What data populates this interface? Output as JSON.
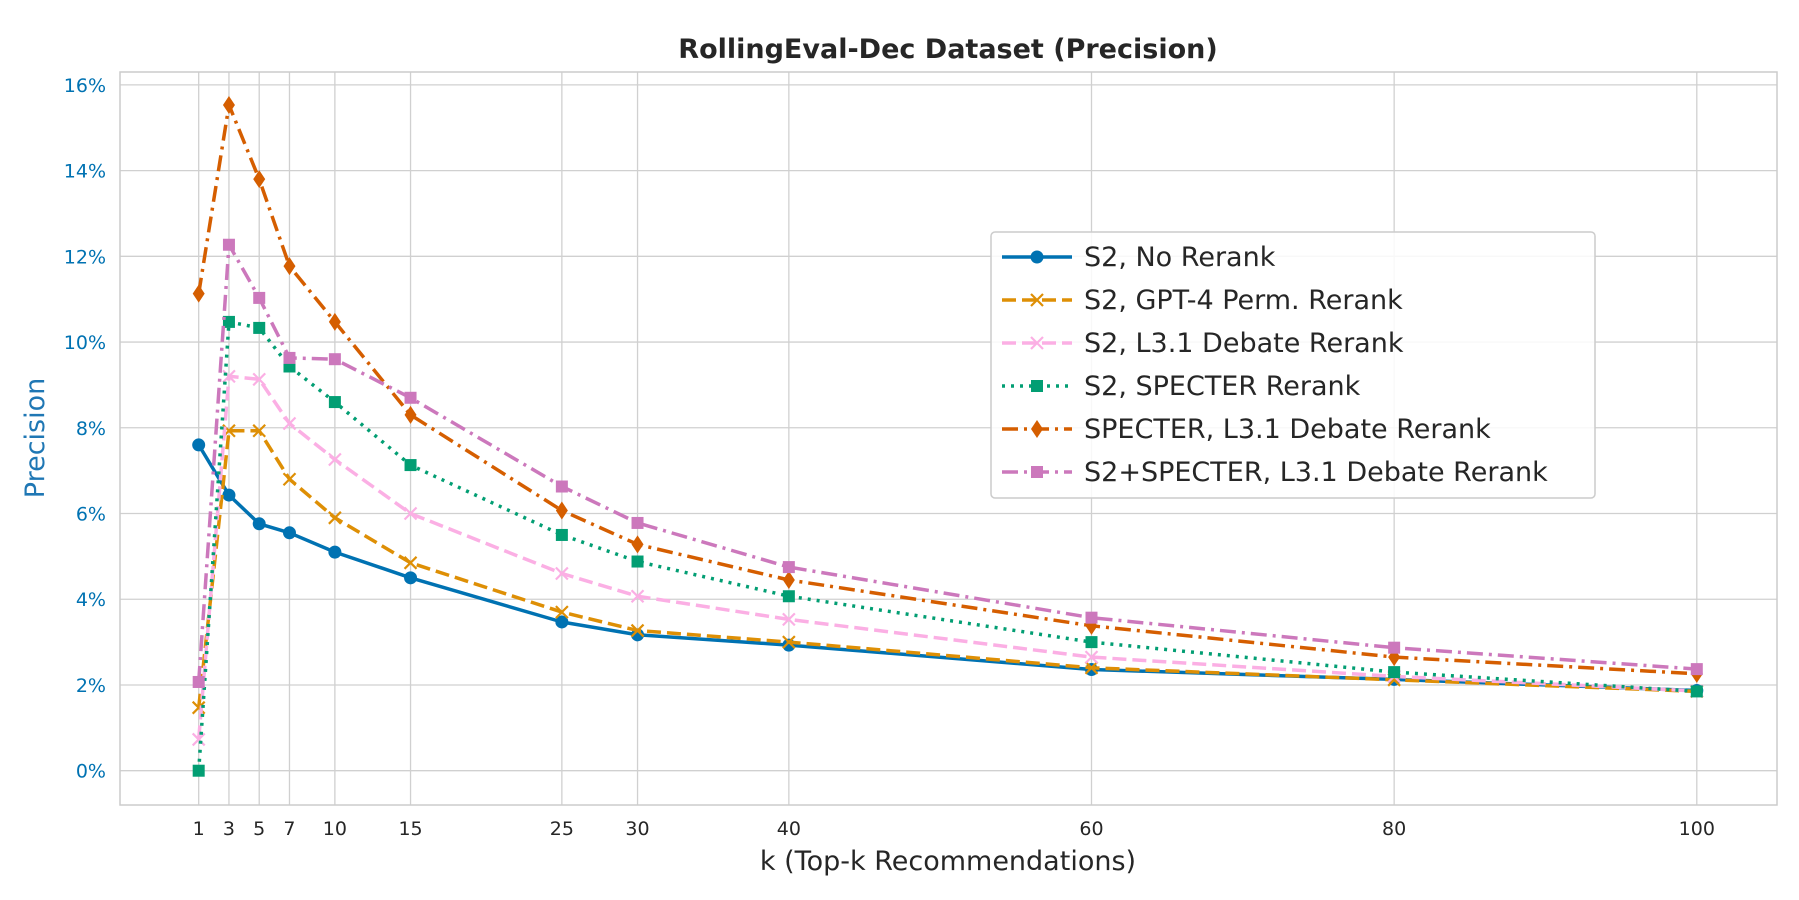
{
  "chart_data": {
    "type": "line",
    "title": "RollingEval-Dec Dataset (Precision)",
    "xlabel": "k (Top-k Recommendations)",
    "ylabel": "Precision",
    "x": [
      1,
      3,
      5,
      7,
      10,
      15,
      25,
      30,
      40,
      60,
      80,
      100
    ],
    "xticks": [
      1,
      3,
      5,
      7,
      10,
      15,
      25,
      30,
      40,
      60,
      80,
      100
    ],
    "xtick_labels": [
      "1",
      "3",
      "5",
      "7",
      "10",
      "15",
      "25",
      "30",
      "40",
      "60",
      "80",
      "100"
    ],
    "xlim": [
      -4.2,
      105.3
    ],
    "ylim": [
      -0.8,
      16.3
    ],
    "yticks": [
      0,
      2,
      4,
      6,
      8,
      10,
      12,
      14,
      16
    ],
    "ytick_labels": [
      "0%",
      "2%",
      "4%",
      "6%",
      "8%",
      "10%",
      "12%",
      "14%",
      "16%"
    ],
    "y_unit": "%",
    "grid": true,
    "legend_position": "upper-right",
    "series": [
      {
        "name": "S2, No Rerank",
        "color": "#0072b2",
        "dash": "solid",
        "marker": "circle",
        "values": [
          7.6,
          6.43,
          5.76,
          5.55,
          5.1,
          4.5,
          3.47,
          3.17,
          2.93,
          2.36,
          2.13,
          1.87
        ]
      },
      {
        "name": "S2, GPT-4 Perm. Rerank",
        "color": "#de8f05",
        "dash": "dashed",
        "marker": "x",
        "values": [
          1.47,
          7.93,
          7.93,
          6.8,
          5.9,
          4.85,
          3.7,
          3.27,
          3.0,
          2.4,
          2.12,
          1.85
        ]
      },
      {
        "name": "S2, L3.1 Debate Rerank",
        "color": "#fbafe4",
        "dash": "dashed",
        "marker": "x",
        "values": [
          0.73,
          9.2,
          9.13,
          8.1,
          7.26,
          6.0,
          4.6,
          4.07,
          3.53,
          2.65,
          2.2,
          1.86
        ]
      },
      {
        "name": "S2, SPECTER Rerank",
        "color": "#029e73",
        "dash": "dotted",
        "marker": "square",
        "values": [
          0.0,
          10.47,
          10.33,
          9.43,
          8.6,
          7.13,
          5.5,
          4.88,
          4.07,
          3.0,
          2.3,
          1.85
        ]
      },
      {
        "name": "SPECTER, L3.1 Debate Rerank",
        "color": "#d55e00",
        "dash": "dashdot",
        "marker": "diamond",
        "values": [
          11.13,
          15.53,
          13.8,
          11.77,
          10.47,
          8.3,
          6.07,
          5.28,
          4.45,
          3.38,
          2.65,
          2.26
        ]
      },
      {
        "name": "S2+SPECTER, L3.1 Debate Rerank",
        "color": "#cc78bc",
        "dash": "dashdot",
        "marker": "square",
        "values": [
          2.07,
          12.27,
          11.03,
          9.63,
          9.6,
          8.7,
          6.63,
          5.78,
          4.75,
          3.57,
          2.87,
          2.37
        ]
      }
    ]
  }
}
